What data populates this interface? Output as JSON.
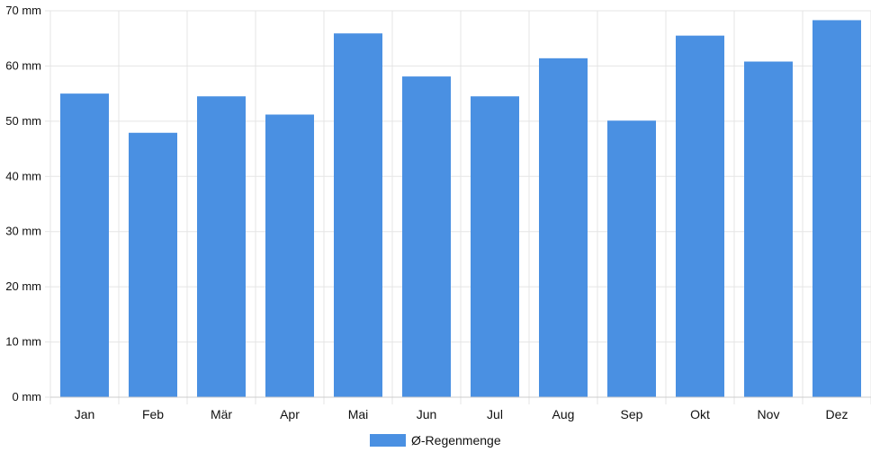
{
  "chart_data": {
    "type": "bar",
    "categories": [
      "Jan",
      "Feb",
      "Mär",
      "Apr",
      "Mai",
      "Jun",
      "Jul",
      "Aug",
      "Sep",
      "Okt",
      "Nov",
      "Dez"
    ],
    "series": [
      {
        "name": "Ø-Regenmenge",
        "color": "#4a90e2",
        "values": [
          55.0,
          47.9,
          54.5,
          51.2,
          65.9,
          58.1,
          54.5,
          61.4,
          50.1,
          65.5,
          60.8,
          68.3
        ]
      }
    ],
    "y_ticks": [
      "0 mm",
      "10 mm",
      "20 mm",
      "30 mm",
      "40 mm",
      "50 mm",
      "60 mm",
      "70 mm"
    ],
    "ylim": [
      0,
      70
    ],
    "y_unit": "mm",
    "grid": true,
    "legend": "bottom",
    "title": "",
    "xlabel": "",
    "ylabel": ""
  }
}
